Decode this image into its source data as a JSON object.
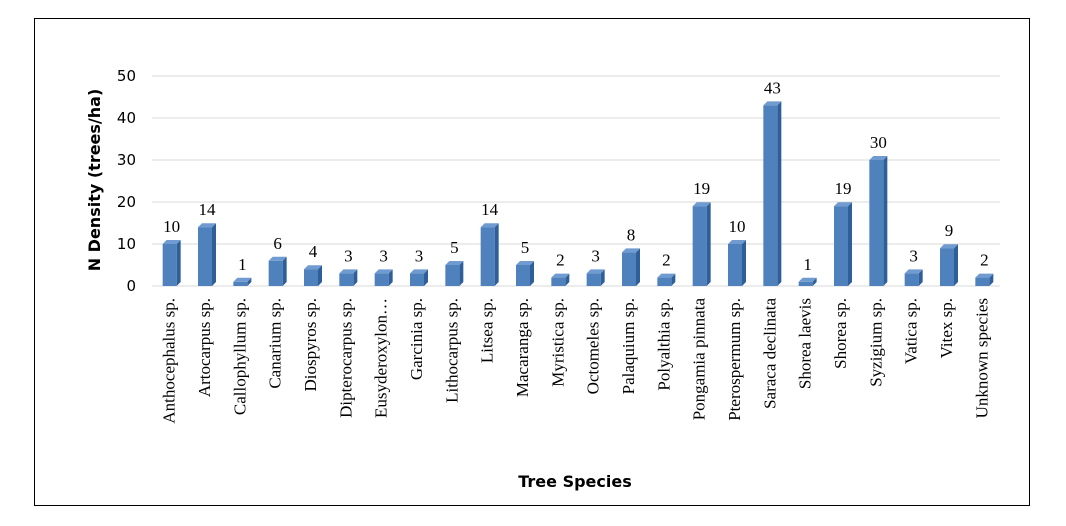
{
  "chart_data": {
    "type": "bar",
    "title": "",
    "xlabel": "Tree Species",
    "ylabel": "N Density (trees/ha)",
    "ylim": [
      0,
      50
    ],
    "yticks": [
      0,
      10,
      20,
      30,
      40,
      50
    ],
    "grid": true,
    "legend": "none",
    "bar_color": "#4f81bd",
    "categories": [
      "Anthocephalus sp.",
      "Artocarpus sp.",
      "Callophyllum sp.",
      "Canarium sp.",
      "Diospyros sp.",
      "Dipterocarpus sp.",
      "Eusyderoxylon…",
      "Garcinia sp.",
      "Lithocarpus sp.",
      "Litsea sp.",
      "Macaranga sp.",
      "Myristica sp.",
      "Octomeles sp.",
      "Palaquium sp.",
      "Polyalthia sp.",
      "Pongamia pinnata",
      "Pterospermum sp.",
      "Saraca declinata",
      "Shorea laevis",
      "Shorea sp.",
      "Syzigium sp.",
      "Vatica sp.",
      "Vitex sp.",
      "Unknown species"
    ],
    "values": [
      10,
      14,
      1,
      6,
      4,
      3,
      3,
      3,
      5,
      14,
      5,
      2,
      3,
      8,
      2,
      19,
      10,
      43,
      1,
      19,
      30,
      3,
      9,
      2
    ]
  }
}
